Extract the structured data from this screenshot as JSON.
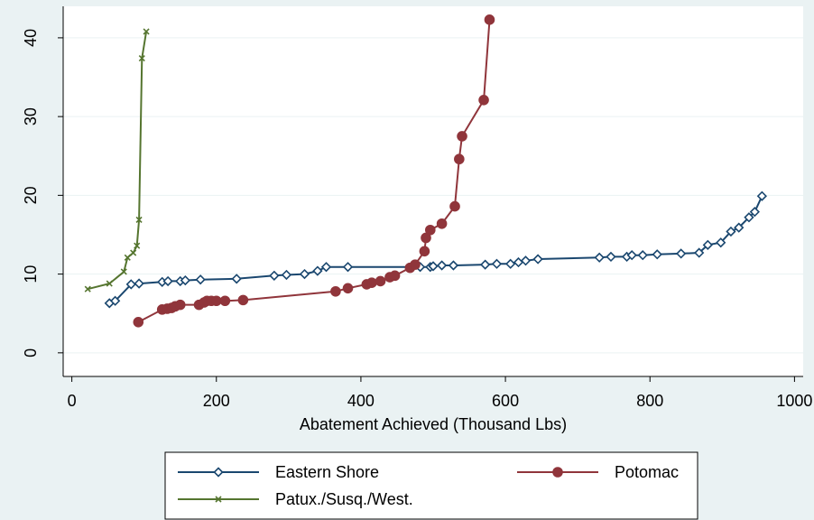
{
  "chart_data": {
    "type": "line",
    "title": "",
    "xlabel": "Abatement Achieved (Thousand Lbs)",
    "ylabel": "",
    "xlim": [
      -12,
      1012
    ],
    "ylim": [
      -3,
      44
    ],
    "x_ticks": [
      0,
      200,
      400,
      600,
      800,
      1000
    ],
    "y_ticks": [
      0,
      10,
      20,
      30,
      40
    ],
    "grid": "horizontal",
    "legend_position": "bottom",
    "colors": {
      "background": "#eaf2f3",
      "plot_background": "#ffffff",
      "gridline": "#eaf2f3",
      "axis": "#000000"
    },
    "series": [
      {
        "name": "Eastern Shore",
        "color": "#1a476f",
        "marker": "diamond",
        "points": [
          [
            52,
            6.3
          ],
          [
            60,
            6.6
          ],
          [
            82,
            8.7
          ],
          [
            93,
            8.8
          ],
          [
            125,
            9.0
          ],
          [
            133,
            9.1
          ],
          [
            150,
            9.1
          ],
          [
            157,
            9.2
          ],
          [
            178,
            9.3
          ],
          [
            228,
            9.4
          ],
          [
            280,
            9.8
          ],
          [
            297,
            9.9
          ],
          [
            322,
            10.0
          ],
          [
            340,
            10.4
          ],
          [
            352,
            10.9
          ],
          [
            382,
            10.9
          ],
          [
            482,
            10.9
          ],
          [
            496,
            10.9
          ],
          [
            500,
            11.0
          ],
          [
            512,
            11.1
          ],
          [
            528,
            11.1
          ],
          [
            572,
            11.2
          ],
          [
            588,
            11.3
          ],
          [
            607,
            11.3
          ],
          [
            618,
            11.5
          ],
          [
            628,
            11.7
          ],
          [
            645,
            11.9
          ],
          [
            730,
            12.1
          ],
          [
            746,
            12.2
          ],
          [
            768,
            12.2
          ],
          [
            775,
            12.4
          ],
          [
            790,
            12.4
          ],
          [
            810,
            12.5
          ],
          [
            843,
            12.6
          ],
          [
            868,
            12.7
          ],
          [
            880,
            13.7
          ],
          [
            898,
            14.0
          ],
          [
            912,
            15.4
          ],
          [
            923,
            15.9
          ],
          [
            937,
            17.2
          ],
          [
            945,
            17.9
          ],
          [
            955,
            19.9
          ]
        ]
      },
      {
        "name": "Potomac",
        "color": "#90353b",
        "marker": "circle",
        "points": [
          [
            92,
            3.9
          ],
          [
            125,
            5.5
          ],
          [
            132,
            5.6
          ],
          [
            138,
            5.7
          ],
          [
            143,
            5.9
          ],
          [
            150,
            6.1
          ],
          [
            176,
            6.1
          ],
          [
            183,
            6.4
          ],
          [
            187,
            6.6
          ],
          [
            193,
            6.6
          ],
          [
            200,
            6.6
          ],
          [
            212,
            6.6
          ],
          [
            237,
            6.7
          ],
          [
            365,
            7.8
          ],
          [
            382,
            8.2
          ],
          [
            408,
            8.7
          ],
          [
            415,
            8.9
          ],
          [
            427,
            9.1
          ],
          [
            440,
            9.6
          ],
          [
            447,
            9.8
          ],
          [
            468,
            10.8
          ],
          [
            475,
            11.2
          ],
          [
            488,
            12.9
          ],
          [
            490,
            14.6
          ],
          [
            496,
            15.6
          ],
          [
            512,
            16.4
          ],
          [
            530,
            18.6
          ],
          [
            536,
            24.6
          ],
          [
            540,
            27.5
          ],
          [
            570,
            32.1
          ],
          [
            578,
            42.3
          ]
        ]
      },
      {
        "name": "Patux./Susq./West.",
        "color": "#55752f",
        "marker": "x",
        "points": [
          [
            22,
            8.1
          ],
          [
            52,
            8.8
          ],
          [
            72,
            10.3
          ],
          [
            77,
            12.1
          ],
          [
            85,
            12.7
          ],
          [
            90,
            13.6
          ],
          [
            93,
            16.9
          ],
          [
            97,
            37.4
          ],
          [
            103,
            40.8
          ]
        ]
      }
    ]
  }
}
